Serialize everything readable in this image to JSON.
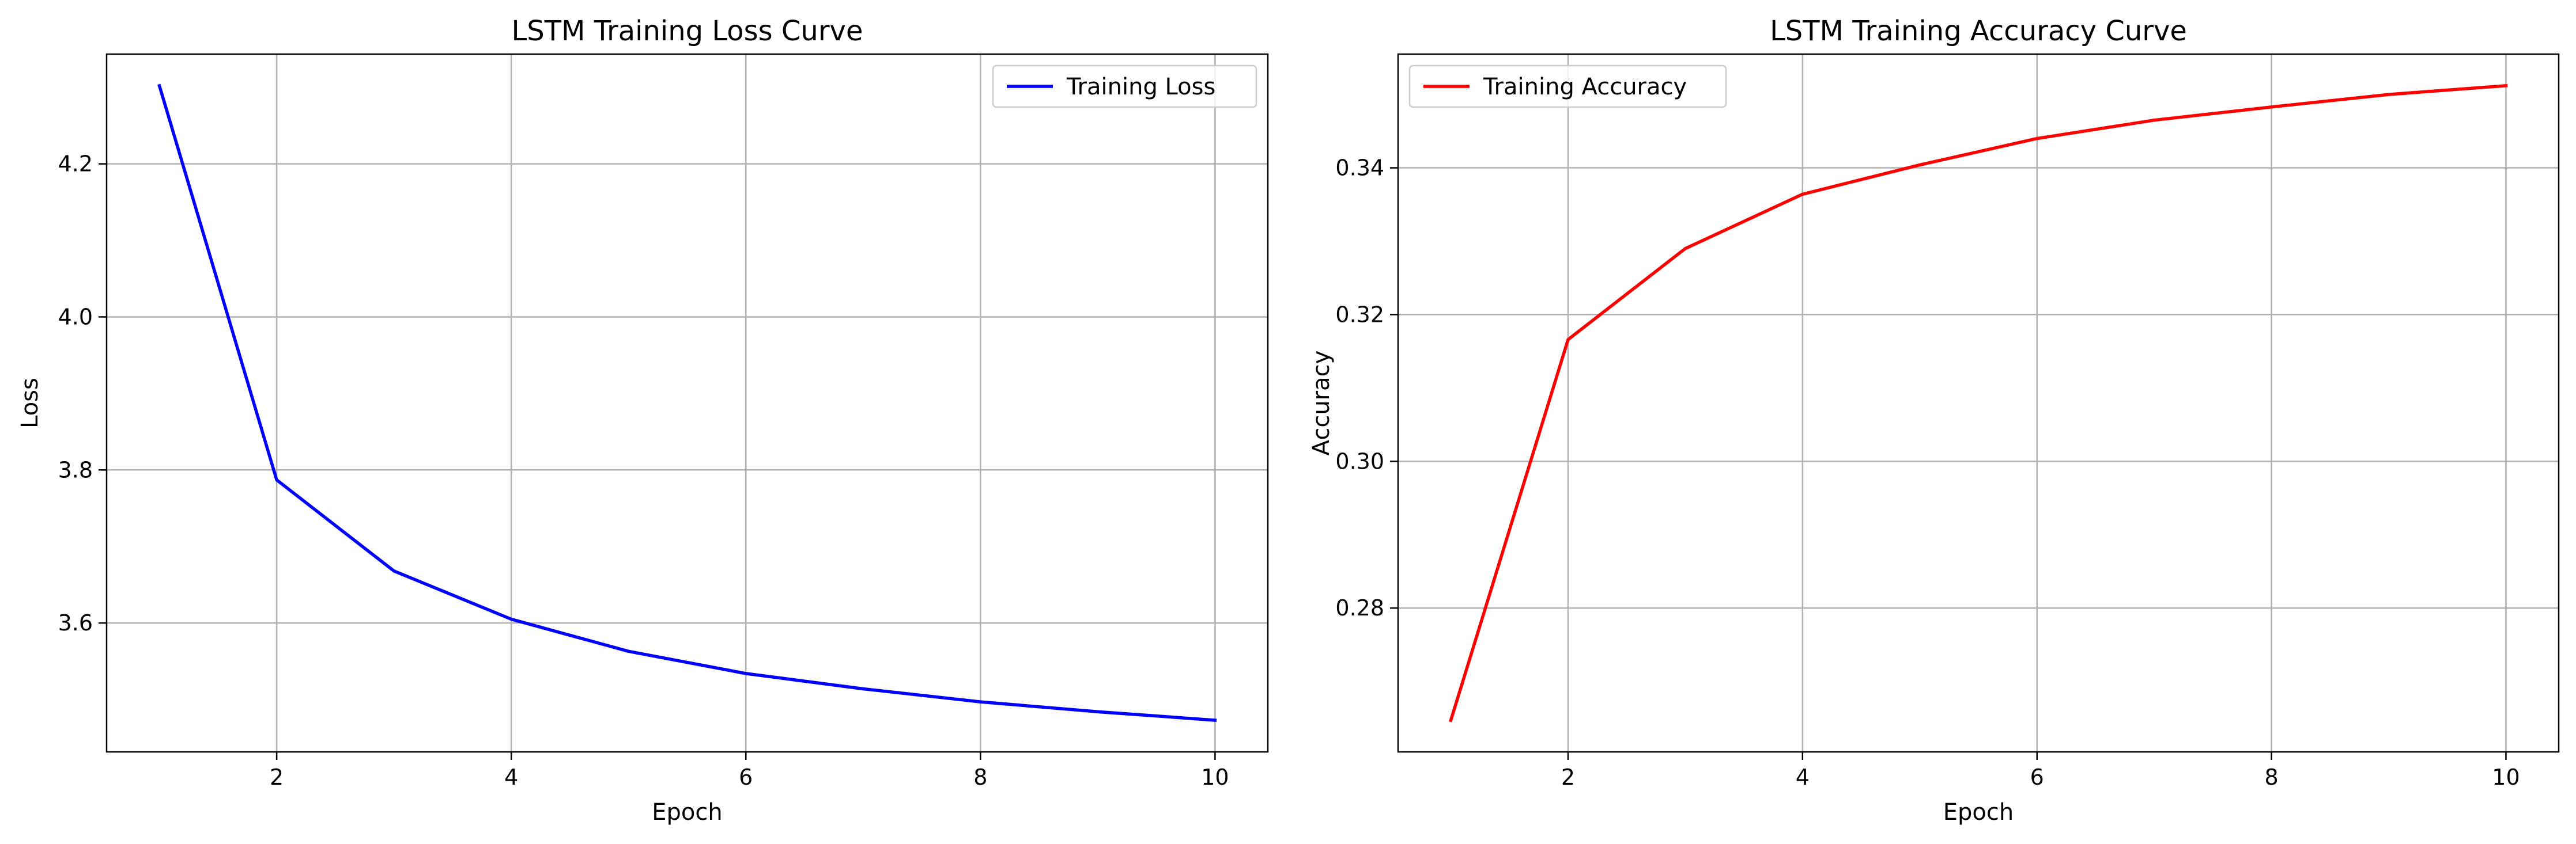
{
  "chart_data": [
    {
      "type": "line",
      "title": "LSTM Training Loss Curve",
      "xlabel": "Epoch",
      "ylabel": "Loss",
      "x": [
        1,
        2,
        3,
        4,
        5,
        6,
        7,
        8,
        9,
        10
      ],
      "series": [
        {
          "name": "Training Loss",
          "color": "#0000ff",
          "values": [
            4.302,
            3.787,
            3.668,
            3.605,
            3.563,
            3.534,
            3.514,
            3.497,
            3.484,
            3.473
          ]
        }
      ],
      "xticks": [
        2,
        4,
        6,
        8,
        10
      ],
      "xtick_labels": [
        "2",
        "4",
        "6",
        "8",
        "10"
      ],
      "yticks": [
        3.6,
        3.8,
        4.0,
        4.2
      ],
      "ytick_labels": [
        "3.6",
        "3.8",
        "4.0",
        "4.2"
      ],
      "xlim": [
        0.55,
        10.45
      ],
      "ylim": [
        3.4316,
        4.3434
      ],
      "grid": true,
      "legend_position": "upper right"
    },
    {
      "type": "line",
      "title": "LSTM Training Accuracy Curve",
      "xlabel": "Epoch",
      "ylabel": "Accuracy",
      "x": [
        1,
        2,
        3,
        4,
        5,
        6,
        7,
        8,
        9,
        10
      ],
      "series": [
        {
          "name": "Training Accuracy",
          "color": "#ff0000",
          "values": [
            0.2647,
            0.3166,
            0.329,
            0.3364,
            0.3404,
            0.344,
            0.3465,
            0.3483,
            0.35,
            0.3512
          ]
        }
      ],
      "xticks": [
        2,
        4,
        6,
        8,
        10
      ],
      "xtick_labels": [
        "2",
        "4",
        "6",
        "8",
        "10"
      ],
      "yticks": [
        0.28,
        0.3,
        0.32,
        0.34
      ],
      "ytick_labels": [
        "0.28",
        "0.30",
        "0.32",
        "0.34"
      ],
      "xlim": [
        0.55,
        10.45
      ],
      "ylim": [
        0.2604,
        0.3555
      ],
      "grid": true,
      "legend_position": "upper left"
    }
  ]
}
